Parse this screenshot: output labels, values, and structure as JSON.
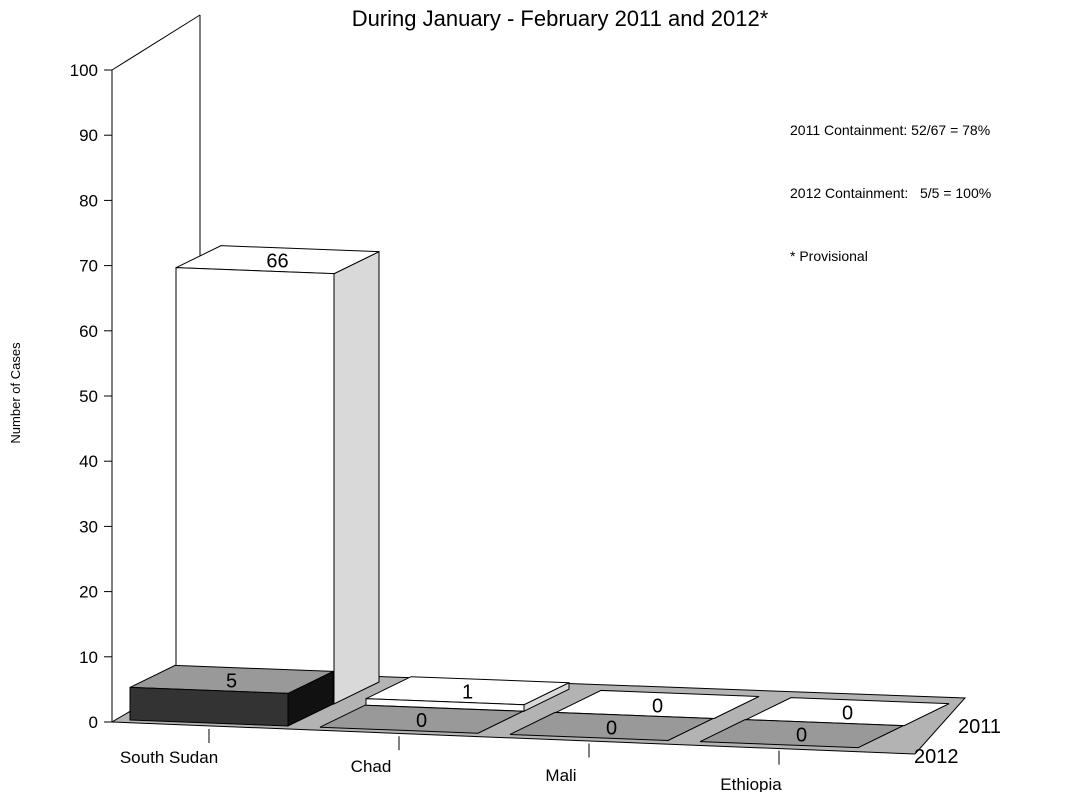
{
  "chart_data": {
    "type": "bar",
    "title": "During January - February 2011 and 2012*",
    "ylabel": "Number of Cases",
    "xlabel": "",
    "ylim": [
      0,
      100
    ],
    "yticks": [
      0,
      10,
      20,
      30,
      40,
      50,
      60,
      70,
      80,
      90,
      100
    ],
    "categories": [
      "South Sudan",
      "Chad",
      "Mali",
      "Ethiopia"
    ],
    "series": [
      {
        "name": "2011",
        "values": [
          66,
          1,
          0,
          0
        ]
      },
      {
        "name": "2012",
        "values": [
          5,
          0,
          0,
          0
        ]
      }
    ],
    "notes": [
      "2011 Containment: 52/67 = 78%",
      "2012 Containment:   5/5 = 100%",
      "* Provisional"
    ],
    "colors": {
      "2011_front": "#ffffff",
      "2011_side": "#d9d9d9",
      "2012_front": "#333333",
      "2012_top": "#999999",
      "floor": "#b3b3b3"
    }
  }
}
